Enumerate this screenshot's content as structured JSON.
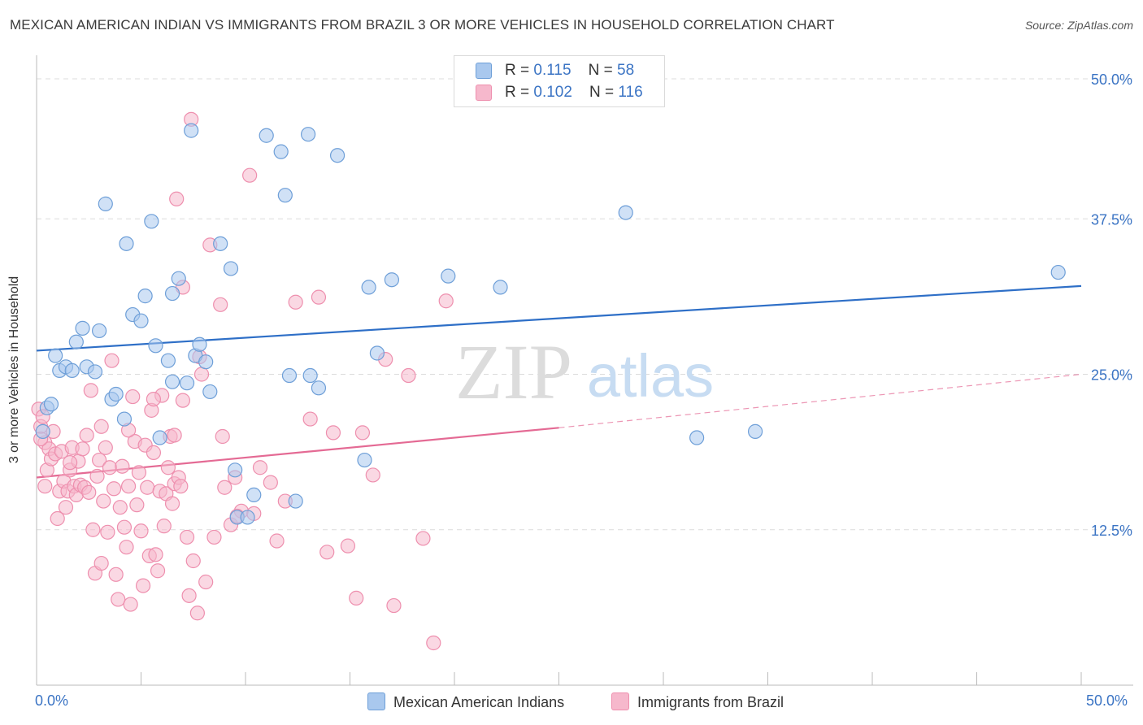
{
  "header": {
    "title": "MEXICAN AMERICAN INDIAN VS IMMIGRANTS FROM BRAZIL 3 OR MORE VEHICLES IN HOUSEHOLD CORRELATION CHART",
    "source": "Source: ZipAtlas.com"
  },
  "legend_top": {
    "rows": [
      {
        "r_label": "R = ",
        "r_value": "0.115",
        "n_label": "N = ",
        "n_value": "58"
      },
      {
        "r_label": "R = ",
        "r_value": "0.102",
        "n_label": "N = ",
        "n_value": "116"
      }
    ]
  },
  "watermark": {
    "zip": "ZIP",
    "atlas": "atlas"
  },
  "colors": {
    "blue_fill": "#a9c8ee",
    "blue_stroke": "#6e9fd8",
    "blue_line": "#2e6fc7",
    "pink_fill": "#f6b8cc",
    "pink_stroke": "#ee8fae",
    "pink_line": "#e46a94",
    "tick_text": "#3b74c4",
    "grid": "#dcdcdc"
  },
  "chart_data": {
    "type": "scatter",
    "title": "MEXICAN AMERICAN INDIAN VS IMMIGRANTS FROM BRAZIL 3 OR MORE VEHICLES IN HOUSEHOLD CORRELATION CHART",
    "xlabel": "",
    "ylabel": "3 or more Vehicles in Household",
    "xlim": [
      0,
      50
    ],
    "ylim": [
      0,
      50
    ],
    "x_tick_labels": [
      "0.0%",
      "50.0%"
    ],
    "y_tick_labels": [
      "12.5%",
      "25.0%",
      "37.5%",
      "50.0%"
    ],
    "y_ticks": [
      12.5,
      25,
      37.5,
      50
    ],
    "grid": true,
    "legend_position": "bottom",
    "series": [
      {
        "name": "Mexican American Indians",
        "color": "#a9c8ee",
        "trend": {
          "x": [
            0,
            50
          ],
          "y": [
            26.9,
            32.1
          ],
          "dashed_from": null
        },
        "points": [
          [
            0.5,
            22.3
          ],
          [
            0.7,
            22.6
          ],
          [
            0.9,
            26.5
          ],
          [
            1.1,
            25.3
          ],
          [
            1.4,
            25.6
          ],
          [
            1.7,
            25.3
          ],
          [
            1.9,
            27.6
          ],
          [
            2.2,
            28.7
          ],
          [
            2.4,
            25.6
          ],
          [
            2.8,
            25.2
          ],
          [
            3.0,
            28.5
          ],
          [
            3.3,
            38.7
          ],
          [
            3.6,
            23.0
          ],
          [
            3.8,
            23.4
          ],
          [
            4.2,
            21.4
          ],
          [
            4.3,
            35.5
          ],
          [
            4.6,
            29.8
          ],
          [
            5.0,
            29.3
          ],
          [
            5.2,
            31.3
          ],
          [
            5.5,
            37.3
          ],
          [
            5.7,
            27.3
          ],
          [
            5.9,
            19.9
          ],
          [
            6.3,
            26.1
          ],
          [
            6.5,
            24.4
          ],
          [
            6.5,
            31.5
          ],
          [
            6.8,
            32.7
          ],
          [
            7.2,
            24.3
          ],
          [
            7.4,
            44.6
          ],
          [
            7.6,
            26.5
          ],
          [
            7.8,
            27.4
          ],
          [
            8.1,
            26.0
          ],
          [
            8.3,
            23.6
          ],
          [
            8.8,
            35.5
          ],
          [
            9.3,
            33.5
          ],
          [
            9.6,
            13.5
          ],
          [
            9.5,
            17.3
          ],
          [
            10.1,
            13.5
          ],
          [
            10.4,
            15.3
          ],
          [
            11.0,
            44.2
          ],
          [
            11.7,
            42.9
          ],
          [
            11.9,
            39.4
          ],
          [
            12.1,
            24.9
          ],
          [
            12.4,
            14.8
          ],
          [
            13.0,
            44.3
          ],
          [
            13.1,
            24.9
          ],
          [
            13.5,
            23.9
          ],
          [
            14.4,
            42.6
          ],
          [
            15.7,
            18.1
          ],
          [
            15.9,
            32.0
          ],
          [
            16.3,
            26.7
          ],
          [
            17.0,
            32.6
          ],
          [
            19.7,
            32.9
          ],
          [
            22.2,
            32.0
          ],
          [
            28.2,
            38.0
          ],
          [
            31.6,
            19.9
          ],
          [
            34.4,
            20.4
          ],
          [
            48.9,
            33.2
          ],
          [
            0.3,
            20.4
          ]
        ]
      },
      {
        "name": "Immigrants from Brazil",
        "color": "#f6b8cc",
        "trend": {
          "x": [
            0,
            25
          ],
          "y": [
            16.7,
            20.7
          ],
          "dashed_to": [
            50,
            25.0
          ]
        },
        "points": [
          [
            0.1,
            22.2
          ],
          [
            0.2,
            20.8
          ],
          [
            0.3,
            21.6
          ],
          [
            0.4,
            16.0
          ],
          [
            0.4,
            19.5
          ],
          [
            0.5,
            17.3
          ],
          [
            0.6,
            19.0
          ],
          [
            0.7,
            18.2
          ],
          [
            0.8,
            20.4
          ],
          [
            0.9,
            18.6
          ],
          [
            1.0,
            13.4
          ],
          [
            1.1,
            15.6
          ],
          [
            1.2,
            18.8
          ],
          [
            1.3,
            16.4
          ],
          [
            1.4,
            14.3
          ],
          [
            1.5,
            15.6
          ],
          [
            1.6,
            17.3
          ],
          [
            1.7,
            19.1
          ],
          [
            1.8,
            16.0
          ],
          [
            1.9,
            15.3
          ],
          [
            2.0,
            18.0
          ],
          [
            2.1,
            16.1
          ],
          [
            2.2,
            19.0
          ],
          [
            2.3,
            15.9
          ],
          [
            2.4,
            20.1
          ],
          [
            2.5,
            15.5
          ],
          [
            2.6,
            23.7
          ],
          [
            2.7,
            12.5
          ],
          [
            2.8,
            9.0
          ],
          [
            2.9,
            16.8
          ],
          [
            3.0,
            18.1
          ],
          [
            3.1,
            9.8
          ],
          [
            3.2,
            14.8
          ],
          [
            3.3,
            19.1
          ],
          [
            3.4,
            12.3
          ],
          [
            3.5,
            17.5
          ],
          [
            3.6,
            26.1
          ],
          [
            3.7,
            15.8
          ],
          [
            3.8,
            8.9
          ],
          [
            3.9,
            6.9
          ],
          [
            4.0,
            14.3
          ],
          [
            4.1,
            17.6
          ],
          [
            4.2,
            12.7
          ],
          [
            4.3,
            11.1
          ],
          [
            4.4,
            16.0
          ],
          [
            4.5,
            6.5
          ],
          [
            4.6,
            23.2
          ],
          [
            4.7,
            19.6
          ],
          [
            4.8,
            14.5
          ],
          [
            4.9,
            17.1
          ],
          [
            5.0,
            12.4
          ],
          [
            5.1,
            8.0
          ],
          [
            5.2,
            19.3
          ],
          [
            5.3,
            15.9
          ],
          [
            5.4,
            10.4
          ],
          [
            5.5,
            22.1
          ],
          [
            5.6,
            18.7
          ],
          [
            5.7,
            10.5
          ],
          [
            5.8,
            9.2
          ],
          [
            5.9,
            15.6
          ],
          [
            6.0,
            23.3
          ],
          [
            6.1,
            12.8
          ],
          [
            6.2,
            15.4
          ],
          [
            6.3,
            17.5
          ],
          [
            6.4,
            20.0
          ],
          [
            6.5,
            14.6
          ],
          [
            6.6,
            16.2
          ],
          [
            6.7,
            39.1
          ],
          [
            6.8,
            16.7
          ],
          [
            6.9,
            16.0
          ],
          [
            7.0,
            22.9
          ],
          [
            7.2,
            11.9
          ],
          [
            7.3,
            7.2
          ],
          [
            7.5,
            10.0
          ],
          [
            7.7,
            5.8
          ],
          [
            7.9,
            25.0
          ],
          [
            8.1,
            8.3
          ],
          [
            8.3,
            35.4
          ],
          [
            8.5,
            11.9
          ],
          [
            8.8,
            30.6
          ],
          [
            9.0,
            15.9
          ],
          [
            9.3,
            12.9
          ],
          [
            9.5,
            16.7
          ],
          [
            9.8,
            14.0
          ],
          [
            10.2,
            41.0
          ],
          [
            10.4,
            13.8
          ],
          [
            10.7,
            17.5
          ],
          [
            11.2,
            16.3
          ],
          [
            11.5,
            11.6
          ],
          [
            11.9,
            14.8
          ],
          [
            12.4,
            30.8
          ],
          [
            13.1,
            21.4
          ],
          [
            13.5,
            31.2
          ],
          [
            13.9,
            10.7
          ],
          [
            14.2,
            20.3
          ],
          [
            14.9,
            11.2
          ],
          [
            15.3,
            7.0
          ],
          [
            15.6,
            20.3
          ],
          [
            16.1,
            16.9
          ],
          [
            16.7,
            26.2
          ],
          [
            17.1,
            6.4
          ],
          [
            17.8,
            24.9
          ],
          [
            18.5,
            11.8
          ],
          [
            19.0,
            3.4
          ],
          [
            19.6,
            30.9
          ],
          [
            7.4,
            45.5
          ],
          [
            7.0,
            32.0
          ],
          [
            8.9,
            20.0
          ],
          [
            9.6,
            13.6
          ],
          [
            4.4,
            20.5
          ],
          [
            5.6,
            23.0
          ],
          [
            1.6,
            17.9
          ],
          [
            0.2,
            19.8
          ],
          [
            7.8,
            26.4
          ],
          [
            3.1,
            20.8
          ],
          [
            6.6,
            20.1
          ]
        ]
      }
    ]
  }
}
